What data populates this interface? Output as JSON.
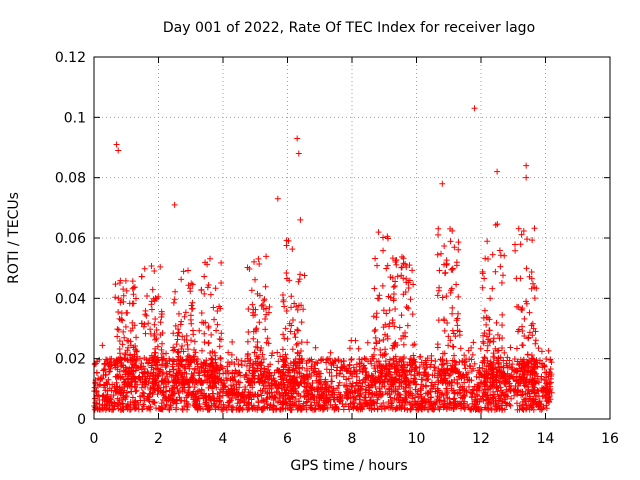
{
  "chart_data": {
    "type": "scatter",
    "title": "Day 001 of 2022, Rate Of TEC Index for receiver lago",
    "xlabel": "GPS time / hours",
    "ylabel": "ROTI / TECUs",
    "xlim": [
      0,
      16
    ],
    "ylim": [
      0,
      0.12
    ],
    "x_ticks": [
      "0",
      "2",
      "4",
      "6",
      "8",
      "10",
      "12",
      "14",
      "16"
    ],
    "y_ticks": [
      "0",
      "0.02",
      "0.04",
      "0.06",
      "0.08",
      "0.1",
      "0.12"
    ],
    "grid": true,
    "marker": "+",
    "color": "#ff0000",
    "notable_points": [
      {
        "x": 0.7,
        "y": 0.091
      },
      {
        "x": 0.75,
        "y": 0.089
      },
      {
        "x": 2.5,
        "y": 0.071
      },
      {
        "x": 5.7,
        "y": 0.073
      },
      {
        "x": 6.3,
        "y": 0.093
      },
      {
        "x": 6.35,
        "y": 0.088
      },
      {
        "x": 6.4,
        "y": 0.066
      },
      {
        "x": 10.8,
        "y": 0.078
      },
      {
        "x": 11.8,
        "y": 0.103
      },
      {
        "x": 12.5,
        "y": 0.082
      },
      {
        "x": 13.4,
        "y": 0.084
      },
      {
        "x": 13.4,
        "y": 0.08
      }
    ],
    "series_summary": {
      "x_range": [
        0,
        14.2
      ],
      "typical_floor": 0.003,
      "typical_band": [
        0.005,
        0.02
      ],
      "spike_clusters": [
        {
          "x": 1.0,
          "peak": 0.046
        },
        {
          "x": 1.8,
          "peak": 0.052
        },
        {
          "x": 2.8,
          "peak": 0.05
        },
        {
          "x": 3.6,
          "peak": 0.055
        },
        {
          "x": 5.1,
          "peak": 0.056
        },
        {
          "x": 6.2,
          "peak": 0.06
        },
        {
          "x": 9.0,
          "peak": 0.063
        },
        {
          "x": 9.6,
          "peak": 0.055
        },
        {
          "x": 11.0,
          "peak": 0.065
        },
        {
          "x": 12.4,
          "peak": 0.065
        },
        {
          "x": 13.4,
          "peak": 0.065
        }
      ]
    }
  }
}
